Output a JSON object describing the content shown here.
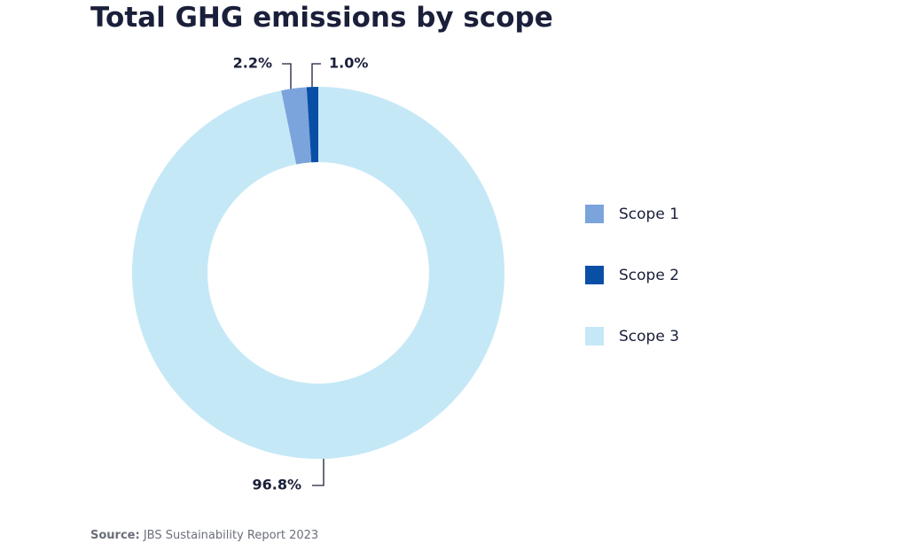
{
  "chart_data": {
    "type": "donut",
    "title": "Total GHG emissions by scope",
    "categories": [
      "Scope 1",
      "Scope 2",
      "Scope 3"
    ],
    "values": [
      2.2,
      1.0,
      96.8
    ],
    "value_labels": [
      "2.2%",
      "1.0%",
      "96.8%"
    ],
    "colors": [
      "#7ba4dc",
      "#0a4fa6",
      "#c5e8f7"
    ],
    "legend": "right",
    "source_label": "Source:",
    "source": "JBS Sustainability Report 2023"
  }
}
